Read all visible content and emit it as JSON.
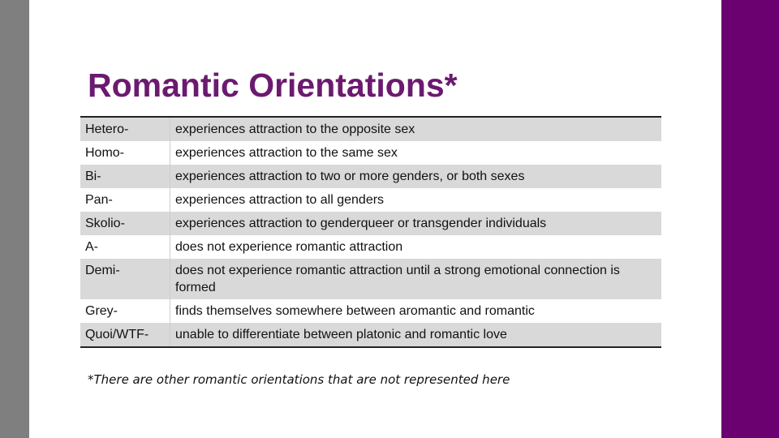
{
  "title": "Romantic Orientations*",
  "table": {
    "rows": [
      [
        "Hetero-",
        "experiences attraction to the opposite sex"
      ],
      [
        "Homo-",
        "experiences attraction to the same sex"
      ],
      [
        "Bi-",
        "experiences attraction to two or more genders, or both sexes"
      ],
      [
        "Pan-",
        "experiences attraction to all genders"
      ],
      [
        "Skolio-",
        "experiences attraction to genderqueer or transgender individuals"
      ],
      [
        "A-",
        "does not experience romantic attraction"
      ],
      [
        "Demi-",
        "does not experience romantic attraction until a strong emotional connection is formed"
      ],
      [
        "Grey-",
        "finds themselves somewhere between aromantic and romantic"
      ],
      [
        "Quoi/WTF-",
        "unable to differentiate between platonic and romantic love"
      ]
    ]
  },
  "footnote": "*There are other romantic orientations that are not represented here"
}
